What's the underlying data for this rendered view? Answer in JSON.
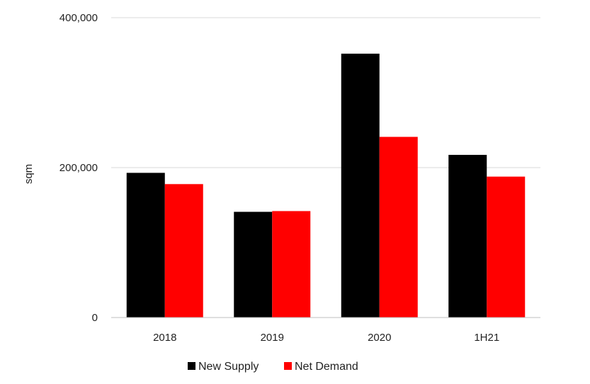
{
  "chart_data": {
    "type": "bar",
    "title": "",
    "xlabel": "",
    "ylabel": "sqm",
    "categories": [
      "2018",
      "2019",
      "2020",
      "1H21"
    ],
    "series": [
      {
        "name": "New Supply",
        "color": "#000000",
        "values": [
          193000,
          141000,
          352000,
          217000
        ]
      },
      {
        "name": "Net Demand",
        "color": "#ff0000",
        "values": [
          178000,
          142000,
          241000,
          188000
        ]
      }
    ],
    "ylim": [
      0,
      400000
    ],
    "yticks": [
      0,
      200000,
      400000
    ],
    "ytick_labels": [
      "0",
      "200,000",
      "400,000"
    ],
    "grid": true,
    "legend_position": "bottom"
  }
}
